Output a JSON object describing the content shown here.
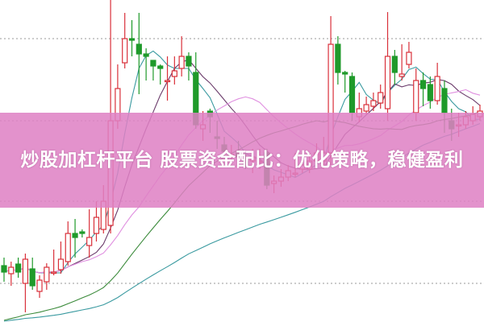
{
  "banner": {
    "title": "炒股加杠杆平台 股票资金配比：优化策略，稳健盈利",
    "background": "#de80c4"
  },
  "chart_data": {
    "type": "candlestick",
    "title": "",
    "xlabel": "",
    "ylabel": "",
    "ylim": [
      0,
      400
    ],
    "grid": "horizontal dotted",
    "grid_levels": [
      48,
      150,
      250,
      352
    ],
    "colors": {
      "up": "#d9303a",
      "down": "#1f9a2a",
      "grid": "#9a9a9a"
    },
    "moving_averages": [
      {
        "window": 5,
        "color": "#3a9aa0"
      },
      {
        "window": 10,
        "color": "#6a3a6a"
      },
      {
        "window": 20,
        "color": "#e090e0"
      },
      {
        "window": 30,
        "color": "#3a8a3a"
      },
      {
        "window": 60,
        "color": "#3a9aa0"
      }
    ],
    "ohlc_fields": [
      "open",
      "close",
      "high",
      "low"
    ],
    "candles": [
      [
        70,
        62,
        80,
        50
      ],
      [
        60,
        68,
        75,
        45
      ],
      [
        72,
        62,
        80,
        55
      ],
      [
        48,
        78,
        85,
        12
      ],
      [
        66,
        45,
        80,
        40
      ],
      [
        38,
        52,
        58,
        30
      ],
      [
        50,
        68,
        73,
        40
      ],
      [
        62,
        62,
        90,
        58
      ],
      [
        65,
        78,
        100,
        60
      ],
      [
        75,
        110,
        125,
        70
      ],
      [
        110,
        105,
        128,
        80
      ],
      [
        112,
        110,
        115,
        105
      ],
      [
        95,
        105,
        140,
        80
      ],
      [
        110,
        130,
        150,
        100
      ],
      [
        115,
        150,
        170,
        110
      ],
      [
        120,
        250,
        400,
        110
      ],
      [
        250,
        290,
        320,
        240
      ],
      [
        322,
        352,
        384,
        315
      ],
      [
        352,
        350,
        375,
        330
      ],
      [
        345,
        333,
        384,
        283
      ],
      [
        333,
        330,
        340,
        300
      ],
      [
        325,
        318,
        325,
        300
      ],
      [
        318,
        315,
        320,
        295
      ],
      [
        300,
        300,
        330,
        275
      ],
      [
        305,
        312,
        330,
        295
      ],
      [
        315,
        330,
        355,
        305
      ],
      [
        330,
        318,
        335,
        300
      ],
      [
        310,
        245,
        335,
        240
      ],
      [
        240,
        245,
        262,
        225
      ],
      [
        262,
        255,
        265,
        235
      ],
      [
        230,
        228,
        250,
        215
      ],
      [
        220,
        212,
        230,
        205
      ],
      [
        205,
        208,
        220,
        200
      ],
      [
        210,
        205,
        225,
        195
      ],
      [
        200,
        195,
        210,
        190
      ],
      [
        200,
        205,
        215,
        185
      ],
      [
        200,
        200,
        215,
        190
      ],
      [
        210,
        170,
        215,
        165
      ],
      [
        172,
        175,
        182,
        160
      ],
      [
        175,
        180,
        190,
        168
      ],
      [
        180,
        188,
        195,
        175
      ],
      [
        185,
        185,
        210,
        180
      ],
      [
        190,
        195,
        205,
        185
      ],
      [
        190,
        200,
        210,
        185
      ],
      [
        200,
        210,
        222,
        195
      ],
      [
        200,
        210,
        230,
        190
      ],
      [
        210,
        345,
        380,
        195
      ],
      [
        345,
        310,
        355,
        295
      ],
      [
        310,
        308,
        312,
        285
      ],
      [
        305,
        260,
        310,
        250
      ],
      [
        255,
        265,
        285,
        248
      ],
      [
        262,
        270,
        280,
        258
      ],
      [
        268,
        275,
        285,
        262
      ],
      [
        272,
        285,
        295,
        265
      ],
      [
        265,
        330,
        385,
        250
      ],
      [
        330,
        310,
        338,
        295
      ],
      [
        305,
        308,
        345,
        300
      ],
      [
        320,
        335,
        348,
        315
      ],
      [
        260,
        300,
        315,
        250
      ],
      [
        300,
        290,
        310,
        268
      ],
      [
        295,
        275,
        305,
        265
      ],
      [
        275,
        305,
        322,
        270
      ],
      [
        290,
        260,
        300,
        235
      ],
      [
        250,
        240,
        265,
        225
      ],
      [
        245,
        245,
        260,
        230
      ],
      [
        245,
        255,
        262,
        240
      ],
      [
        250,
        258,
        268,
        245
      ],
      [
        255,
        262,
        270,
        250
      ]
    ]
  }
}
